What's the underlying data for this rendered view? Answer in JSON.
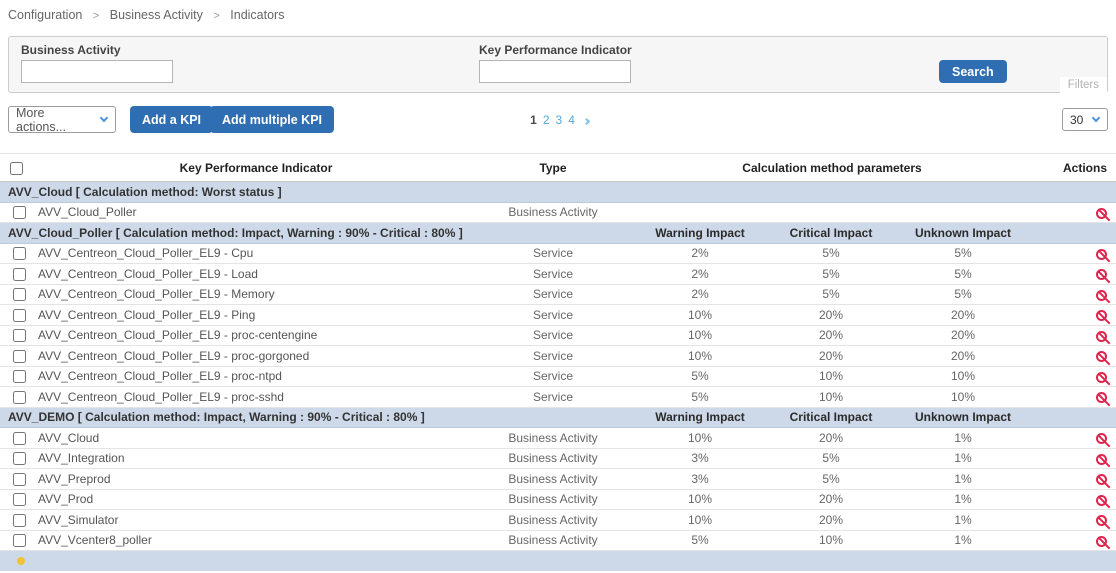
{
  "breadcrumb": {
    "items": [
      "Configuration",
      "Business Activity",
      "Indicators"
    ],
    "separator": ">"
  },
  "filters": {
    "business_activity_label": "Business Activity",
    "business_activity_value": "",
    "kpi_label": "Key Performance Indicator",
    "kpi_value": "",
    "search_label": "Search",
    "filters_label": "Filters"
  },
  "toolbar": {
    "more_actions_label": "More actions...",
    "add_kpi_label": "Add a KPI",
    "add_multiple_kpi_label": "Add multiple KPI",
    "page_size": "30"
  },
  "pagination": {
    "current": "1",
    "pages": [
      "2",
      "3",
      "4"
    ],
    "next_icon": "chevron-right"
  },
  "table": {
    "headers": {
      "kpi": "Key Performance Indicator",
      "type": "Type",
      "calc": "Calculation method parameters",
      "actions": "Actions"
    },
    "groups": [
      {
        "title": "AVV_Cloud [ Calculation method: Worst status ]",
        "sub_headers": null,
        "rows": [
          {
            "name": "AVV_Cloud_Poller",
            "type": "Business Activity",
            "warning": "",
            "critical": "",
            "unknown": ""
          }
        ]
      },
      {
        "title": "AVV_Cloud_Poller [ Calculation method: Impact, Warning : 90% - Critical : 80% ]",
        "sub_headers": {
          "warning": "Warning Impact",
          "critical": "Critical Impact",
          "unknown": "Unknown Impact"
        },
        "rows": [
          {
            "name": "AVV_Centreon_Cloud_Poller_EL9 - Cpu",
            "type": "Service",
            "warning": "2%",
            "critical": "5%",
            "unknown": "5%"
          },
          {
            "name": "AVV_Centreon_Cloud_Poller_EL9 - Load",
            "type": "Service",
            "warning": "2%",
            "critical": "5%",
            "unknown": "5%"
          },
          {
            "name": "AVV_Centreon_Cloud_Poller_EL9 - Memory",
            "type": "Service",
            "warning": "2%",
            "critical": "5%",
            "unknown": "5%"
          },
          {
            "name": "AVV_Centreon_Cloud_Poller_EL9 - Ping",
            "type": "Service",
            "warning": "10%",
            "critical": "20%",
            "unknown": "20%"
          },
          {
            "name": "AVV_Centreon_Cloud_Poller_EL9 - proc-centengine",
            "type": "Service",
            "warning": "10%",
            "critical": "20%",
            "unknown": "20%"
          },
          {
            "name": "AVV_Centreon_Cloud_Poller_EL9 - proc-gorgoned",
            "type": "Service",
            "warning": "10%",
            "critical": "20%",
            "unknown": "20%"
          },
          {
            "name": "AVV_Centreon_Cloud_Poller_EL9 - proc-ntpd",
            "type": "Service",
            "warning": "5%",
            "critical": "10%",
            "unknown": "10%"
          },
          {
            "name": "AVV_Centreon_Cloud_Poller_EL9 - proc-sshd",
            "type": "Service",
            "warning": "5%",
            "critical": "10%",
            "unknown": "10%"
          }
        ]
      },
      {
        "title": "AVV_DEMO [ Calculation method: Impact, Warning : 90% - Critical : 80% ]",
        "sub_headers": {
          "warning": "Warning Impact",
          "critical": "Critical Impact",
          "unknown": "Unknown Impact"
        },
        "rows": [
          {
            "name": "AVV_Cloud",
            "type": "Business Activity",
            "warning": "10%",
            "critical": "20%",
            "unknown": "1%"
          },
          {
            "name": "AVV_Integration",
            "type": "Business Activity",
            "warning": "3%",
            "critical": "5%",
            "unknown": "1%"
          },
          {
            "name": "AVV_Preprod",
            "type": "Business Activity",
            "warning": "3%",
            "critical": "5%",
            "unknown": "1%"
          },
          {
            "name": "AVV_Prod",
            "type": "Business Activity",
            "warning": "10%",
            "critical": "20%",
            "unknown": "1%"
          },
          {
            "name": "AVV_Simulator",
            "type": "Business Activity",
            "warning": "10%",
            "critical": "20%",
            "unknown": "1%"
          },
          {
            "name": "AVV_Vcenter8_poller",
            "type": "Business Activity",
            "warning": "5%",
            "critical": "10%",
            "unknown": "1%"
          }
        ]
      }
    ]
  },
  "icons": {
    "delete_icon": "forbidden-circle-slash",
    "select_chevron": "chevron-down",
    "next_page": "chevron-right"
  },
  "colors": {
    "accent_blue": "#2f6eb2",
    "link_blue": "#54a7dc",
    "group_header_bg": "#cdd9e8",
    "forbidden_red": "#e0244c",
    "panel_bg": "#f6f6f6"
  }
}
